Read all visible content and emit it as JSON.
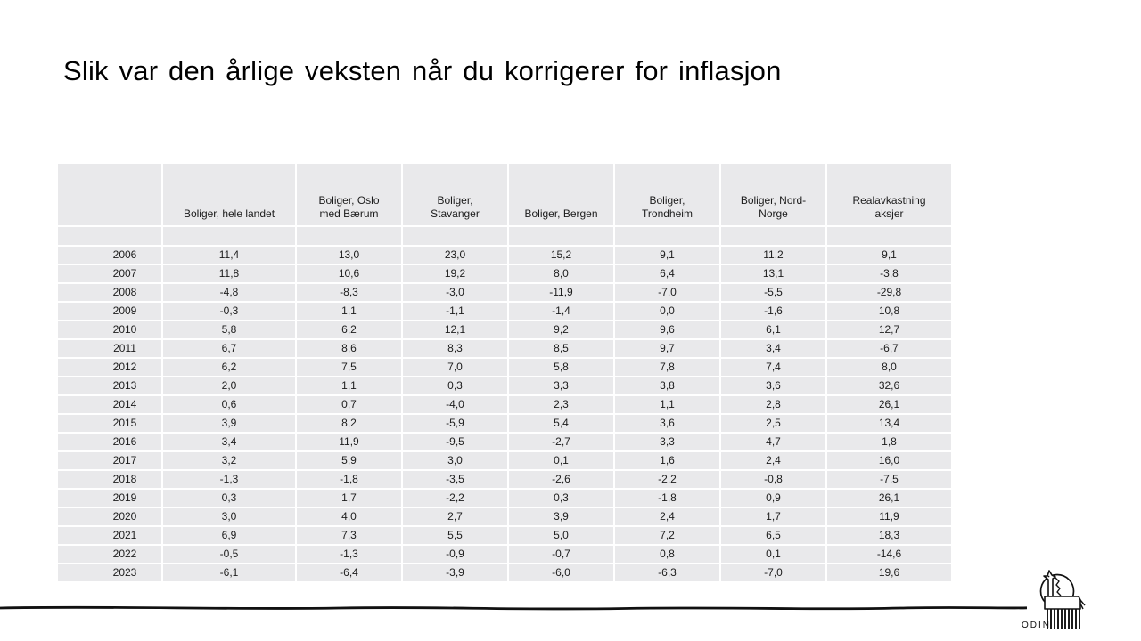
{
  "slide": {
    "title": "Slik var den årlige veksten når du korrigerer for inflasjon"
  },
  "table": {
    "columns": [
      "",
      "Boliger, hele landet",
      "Boliger, Oslo\nmed Bærum",
      "Boliger,\nStavanger",
      "Boliger, Bergen",
      "Boliger,\nTrondheim",
      "Boliger, Nord-\nNorge",
      "Realavkastning\naksjer"
    ],
    "rows": [
      {
        "year": "2006",
        "values": [
          "11,4",
          "13,0",
          "23,0",
          "15,2",
          "9,1",
          "11,2",
          "9,1"
        ]
      },
      {
        "year": "2007",
        "values": [
          "11,8",
          "10,6",
          "19,2",
          "8,0",
          "6,4",
          "13,1",
          "-3,8"
        ]
      },
      {
        "year": "2008",
        "values": [
          "-4,8",
          "-8,3",
          "-3,0",
          "-11,9",
          "-7,0",
          "-5,5",
          "-29,8"
        ]
      },
      {
        "year": "2009",
        "values": [
          "-0,3",
          "1,1",
          "-1,1",
          "-1,4",
          "0,0",
          "-1,6",
          "10,8"
        ]
      },
      {
        "year": "2010",
        "values": [
          "5,8",
          "6,2",
          "12,1",
          "9,2",
          "9,6",
          "6,1",
          "12,7"
        ]
      },
      {
        "year": "2011",
        "values": [
          "6,7",
          "8,6",
          "8,3",
          "8,5",
          "9,7",
          "3,4",
          "-6,7"
        ]
      },
      {
        "year": "2012",
        "values": [
          "6,2",
          "7,5",
          "7,0",
          "5,8",
          "7,8",
          "7,4",
          "8,0"
        ]
      },
      {
        "year": "2013",
        "values": [
          "2,0",
          "1,1",
          "0,3",
          "3,3",
          "3,8",
          "3,6",
          "32,6"
        ]
      },
      {
        "year": "2014",
        "values": [
          "0,6",
          "0,7",
          "-4,0",
          "2,3",
          "1,1",
          "2,8",
          "26,1"
        ]
      },
      {
        "year": "2015",
        "values": [
          "3,9",
          "8,2",
          "-5,9",
          "5,4",
          "3,6",
          "2,5",
          "13,4"
        ]
      },
      {
        "year": "2016",
        "values": [
          "3,4",
          "11,9",
          "-9,5",
          "-2,7",
          "3,3",
          "4,7",
          "1,8"
        ]
      },
      {
        "year": "2017",
        "values": [
          "3,2",
          "5,9",
          "3,0",
          "0,1",
          "1,6",
          "2,4",
          "16,0"
        ]
      },
      {
        "year": "2018",
        "values": [
          "-1,3",
          "-1,8",
          "-3,5",
          "-2,6",
          "-2,2",
          "-0,8",
          "-7,5"
        ]
      },
      {
        "year": "2019",
        "values": [
          "0,3",
          "1,7",
          "-2,2",
          "0,3",
          "-1,8",
          "0,9",
          "26,1"
        ]
      },
      {
        "year": "2020",
        "values": [
          "3,0",
          "4,0",
          "2,7",
          "3,9",
          "2,4",
          "1,7",
          "11,9"
        ]
      },
      {
        "year": "2021",
        "values": [
          "6,9",
          "7,3",
          "5,5",
          "5,0",
          "7,2",
          "6,5",
          "18,3"
        ]
      },
      {
        "year": "2022",
        "values": [
          "-0,5",
          "-1,3",
          "-0,9",
          "-0,7",
          "0,8",
          "0,1",
          "-14,6"
        ]
      },
      {
        "year": "2023",
        "values": [
          "-6,1",
          "-6,4",
          "-3,9",
          "-6,0",
          "-6,3",
          "-7,0",
          "19,6"
        ]
      }
    ]
  },
  "footer": {
    "logo_text": "ODIN"
  },
  "colors": {
    "cell_bg": "#e9e9eb",
    "text": "#1c1c1c",
    "rule": "#111111"
  }
}
